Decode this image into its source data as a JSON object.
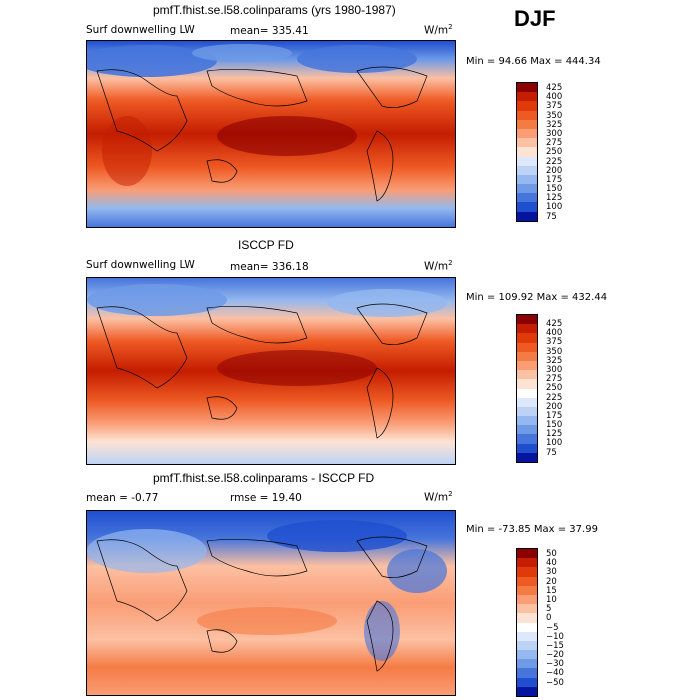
{
  "season": "DJF",
  "colors": {
    "max": "#8b0000",
    "min": "#00008b"
  },
  "chart_data": [
    {
      "type": "heatmap",
      "title": "pmfT.fhist.se.l58.colinparams (yrs 1980-1987)",
      "variable": "Surf downwelling LW",
      "mean_label": "mean=  335.41",
      "units": "W/m",
      "units_exp": "2",
      "minmax": "Min =  94.66 Max = 444.34",
      "levels": [
        "425",
        "400",
        "375",
        "350",
        "325",
        "300",
        "275",
        "250",
        "225",
        "200",
        "175",
        "150",
        "125",
        "100",
        "75"
      ],
      "colors": [
        "#8b0000",
        "#c41d00",
        "#e13a0a",
        "#ee5a24",
        "#f57b45",
        "#fa9d75",
        "#fcc0a2",
        "#fde3d4",
        "#dde9fb",
        "#bcd3f5",
        "#94b8ef",
        "#6e9ae6",
        "#4675dc",
        "#1f4fcf",
        "#0515a0"
      ]
    },
    {
      "type": "heatmap",
      "title": "ISCCP FD",
      "variable": "Surf downwelling LW",
      "mean_label": "mean= 336.18",
      "units": "W/m",
      "units_exp": "2",
      "minmax": "Min = 109.92 Max = 432.44",
      "levels": [
        "425",
        "400",
        "375",
        "350",
        "325",
        "300",
        "275",
        "250",
        "225",
        "200",
        "175",
        "150",
        "125",
        "100",
        "75"
      ],
      "colors": [
        "#8b0000",
        "#c41d00",
        "#e13a0a",
        "#ee5a24",
        "#f57b45",
        "#fa9d75",
        "#fcc0a2",
        "#fde3d4",
        "#ffffff",
        "#dde9fb",
        "#bcd3f5",
        "#94b8ef",
        "#6e9ae6",
        "#4675dc",
        "#1f4fcf",
        "#0515a0"
      ]
    },
    {
      "type": "heatmap",
      "title": "pmfT.fhist.se.l58.colinparams - ISCCP FD",
      "variable": "",
      "mean_label": "mean =   -0.77",
      "rmse_label": "rmse =  19.40",
      "units": "W/m",
      "units_exp": "2",
      "minmax": "Min = -73.85 Max =  37.99",
      "levels": [
        "50",
        "40",
        "30",
        "20",
        "15",
        "10",
        "5",
        "0",
        "−5",
        "−10",
        "−15",
        "−20",
        "−30",
        "−40",
        "−50"
      ],
      "colors": [
        "#8b0000",
        "#c41d00",
        "#e13a0a",
        "#ee5a24",
        "#f57b45",
        "#fa9d75",
        "#fcc0a2",
        "#fde3d4",
        "#ffffff",
        "#dde9fb",
        "#bcd3f5",
        "#94b8ef",
        "#6e9ae6",
        "#4675dc",
        "#1f4fcf",
        "#0515a0"
      ]
    }
  ]
}
